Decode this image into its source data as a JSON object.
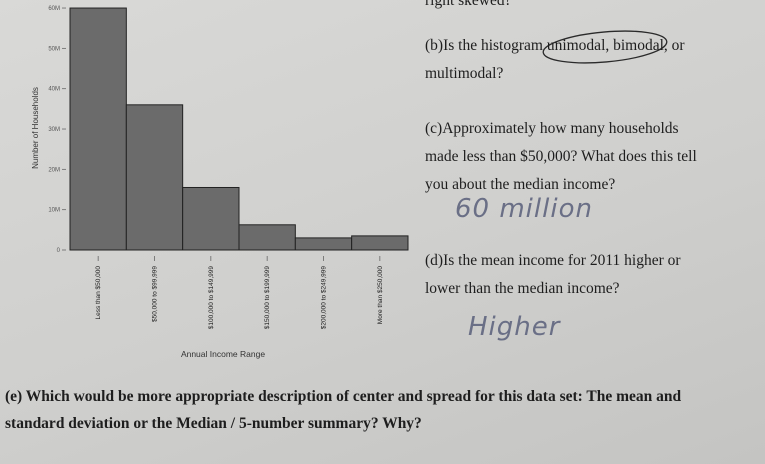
{
  "chart_data": {
    "type": "bar",
    "x_label": "Annual Income Range",
    "y_label": "Number of Households",
    "categories": [
      "Less than $50,000",
      "$50,000 to $99,999",
      "$100,000 to $149,999",
      "$150,000 to $199,999",
      "$200,000 to $249,999",
      "More than $250,000"
    ],
    "values": [
      60000000,
      36000000,
      15500000,
      6250000,
      3000000,
      3500000
    ],
    "color": "#6b6b6b",
    "ylim": [
      0,
      61000000
    ],
    "yticks": [
      0,
      {
        "value": 10000000,
        "label": "10M"
      },
      {
        "value": 20000000,
        "label": "20M"
      },
      {
        "value": 30000000,
        "label": "30M"
      },
      {
        "value": 40000000,
        "label": "40M"
      },
      {
        "value": 50000000,
        "label": "50M"
      },
      {
        "value": 60000000,
        "label": "60M"
      }
    ]
  },
  "document": {
    "header": "right skewed?",
    "question_b": {
      "lines": [
        "(b)Is the histogram unimodal, bimodal, or",
        "multimodal?"
      ]
    },
    "question_c": {
      "lines": [
        "(c)Approximately how many households",
        "made less than $50,000? What does this tell",
        "you about the median income?"
      ]
    },
    "answer_c": "60 million",
    "question_d": {
      "lines": [
        "(d)Is the mean income for 2011 higher or",
        "lower than the median income?"
      ]
    },
    "answer_d": "Higher",
    "question_e": {
      "lines": [
        "(e) Which would be more appropriate description of center and spread for this data set: The mean and",
        "standard deviation or the Median / 5-number summary? Why?"
      ]
    }
  }
}
